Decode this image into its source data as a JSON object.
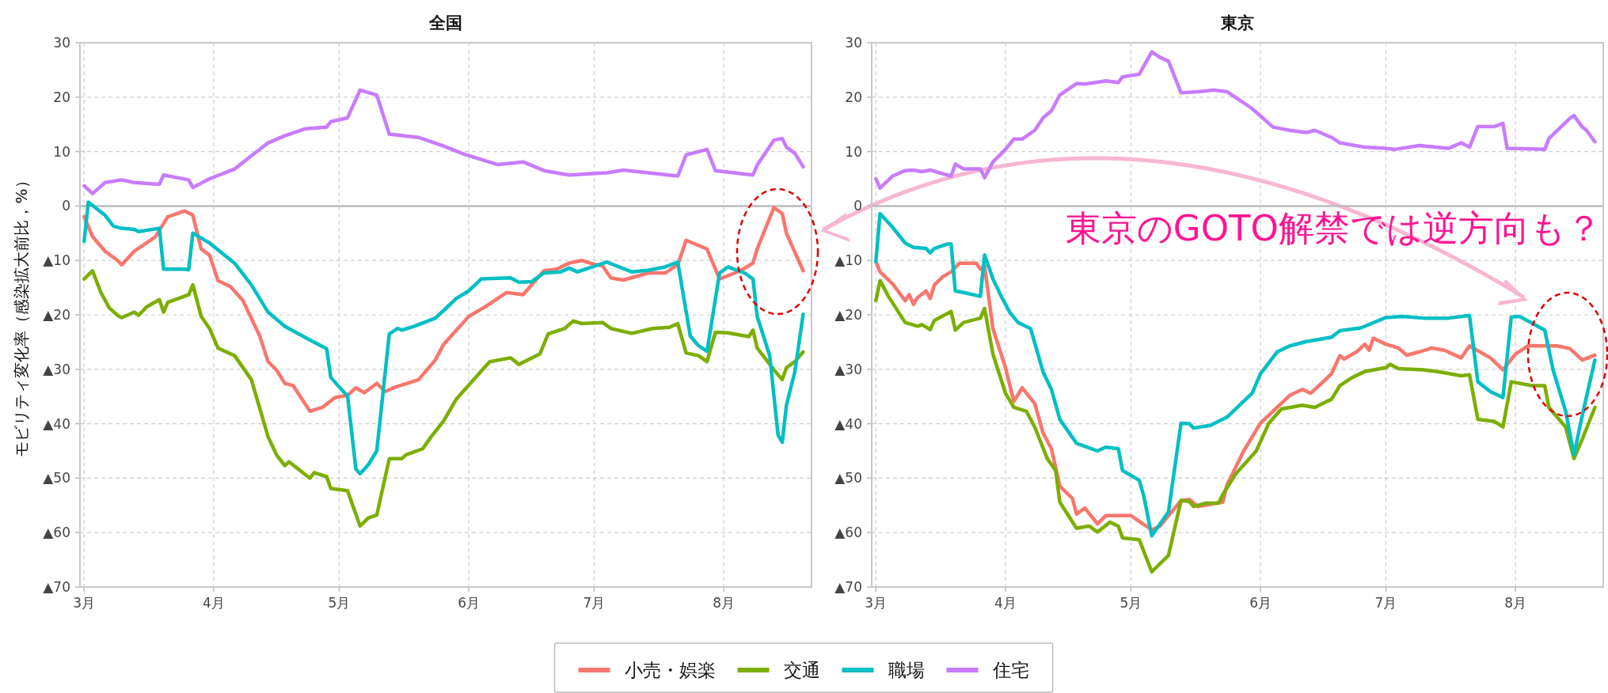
{
  "chart_data": [
    {
      "type": "line",
      "title": "全国",
      "ylabel": "モビリティ変化率（感染拡大前比，%）",
      "grid": true,
      "legend": "bottom",
      "xlim": [
        "--02-28",
        "--08-22"
      ],
      "ylim": [
        -70,
        30
      ],
      "xticks": [
        {
          "value": "--03-01",
          "label": "3月"
        },
        {
          "value": "--04-01",
          "label": "4月"
        },
        {
          "value": "--05-01",
          "label": "5月"
        },
        {
          "value": "--06-01",
          "label": "6月"
        },
        {
          "value": "--07-01",
          "label": "7月"
        },
        {
          "value": "--08-01",
          "label": "8月"
        }
      ],
      "yticks": [
        30,
        20,
        10,
        0,
        {
          "value": -10,
          "label": "▲10"
        },
        {
          "value": -20,
          "label": "▲20"
        },
        {
          "value": -30,
          "label": "▲30"
        },
        {
          "value": -40,
          "label": "▲40"
        },
        {
          "value": -50,
          "label": "▲50"
        },
        {
          "value": -60,
          "label": "▲60"
        },
        {
          "value": -70,
          "label": "▲70"
        }
      ],
      "ref_lines": [
        {
          "axis": "y",
          "value": 0,
          "color": "#bbbbbb"
        }
      ],
      "series": [
        {
          "name": "小売・娯楽",
          "color": "#f8766d",
          "x": [
            "--03-01",
            "--03-03",
            "--03-06",
            "--03-09",
            "--03-10",
            "--03-13",
            "--03-18",
            "--03-21",
            "--03-25",
            "--03-27",
            "--03-29",
            "--03-31",
            "--04-02",
            "--04-05",
            "--04-08",
            "--04-12",
            "--04-14",
            "--04-16",
            "--04-18",
            "--04-20",
            "--04-24",
            "--04-27",
            "--04-30",
            "--05-03",
            "--05-05",
            "--05-07",
            "--05-10",
            "--05-12",
            "--05-14",
            "--05-20",
            "--05-24",
            "--05-26",
            "--06-01",
            "--06-05",
            "--06-10",
            "--06-14",
            "--06-19",
            "--06-22",
            "--06-25",
            "--06-28",
            "--06-30",
            "--07-03",
            "--07-05",
            "--07-08",
            "--07-14",
            "--07-18",
            "--07-21",
            "--07-23",
            "--07-28",
            "--07-31",
            "--08-05",
            "--08-08",
            "--08-09",
            "--08-13",
            "--08-15",
            "--08-16",
            "--08-20"
          ],
          "values": [
            -2.0,
            -5.6,
            -8.3,
            -10.0,
            -10.8,
            -8.3,
            -5.7,
            -2.0,
            -0.9,
            -1.7,
            -7.9,
            -9.0,
            -13.7,
            -14.8,
            -17.4,
            -23.9,
            -28.6,
            -30.1,
            -32.6,
            -33.0,
            -37.7,
            -37.0,
            -35.2,
            -34.8,
            -33.4,
            -34.3,
            -32.6,
            -34.1,
            -33.4,
            -31.9,
            -28.3,
            -25.4,
            -20.3,
            -18.5,
            -15.9,
            -16.3,
            -11.9,
            -11.6,
            -10.5,
            -10.0,
            -10.5,
            -11.0,
            -13.2,
            -13.6,
            -12.3,
            -12.3,
            -10.8,
            -6.3,
            -7.9,
            -13.4,
            -11.9,
            -10.5,
            -7.9,
            -0.3,
            -1.4,
            -5.0,
            -11.9
          ]
        },
        {
          "name": "交通",
          "color": "#7cae00",
          "x": [
            "--03-01",
            "--03-03",
            "--03-05",
            "--03-07",
            "--03-09",
            "--03-10",
            "--03-13",
            "--03-14",
            "--03-16",
            "--03-19",
            "--03-20",
            "--03-21",
            "--03-26",
            "--03-27",
            "--03-29",
            "--03-31",
            "--04-02",
            "--04-06",
            "--04-10",
            "--04-14",
            "--04-16",
            "--04-18",
            "--04-19",
            "--04-24",
            "--04-25",
            "--04-28",
            "--04-29",
            "--05-03",
            "--05-06",
            "--05-08",
            "--05-10",
            "--05-13",
            "--05-16",
            "--05-17",
            "--05-21",
            "--05-23",
            "--05-26",
            "--05-29",
            "--06-03",
            "--06-06",
            "--06-11",
            "--06-13",
            "--06-18",
            "--06-20",
            "--06-24",
            "--06-26",
            "--06-28",
            "--07-03",
            "--07-05",
            "--07-10",
            "--07-15",
            "--07-19",
            "--07-21",
            "--07-23",
            "--07-26",
            "--07-28",
            "--07-30",
            "--08-02",
            "--08-07",
            "--08-08",
            "--08-09",
            "--08-13",
            "--08-15",
            "--08-16",
            "--08-18",
            "--08-20"
          ],
          "values": [
            -13.4,
            -11.9,
            -15.9,
            -18.7,
            -20.1,
            -20.5,
            -19.5,
            -20.1,
            -18.5,
            -17.2,
            -19.5,
            -17.7,
            -16.3,
            -14.5,
            -20.3,
            -22.5,
            -26.1,
            -27.5,
            -31.9,
            -42.4,
            -45.7,
            -47.7,
            -47.0,
            -50.0,
            -49.0,
            -49.7,
            -51.9,
            -52.3,
            -58.8,
            -57.3,
            -56.8,
            -46.4,
            -46.4,
            -45.7,
            -44.6,
            -42.4,
            -39.5,
            -35.5,
            -31.2,
            -28.6,
            -27.9,
            -29.1,
            -27.2,
            -23.5,
            -22.5,
            -21.1,
            -21.6,
            -21.4,
            -22.5,
            -23.4,
            -22.5,
            -22.3,
            -21.6,
            -27.0,
            -27.5,
            -28.6,
            -23.2,
            -23.3,
            -24.0,
            -22.8,
            -26.1,
            -30.1,
            -31.9,
            -29.7,
            -28.6,
            -26.8
          ]
        },
        {
          "name": "職場",
          "color": "#00bfc4",
          "x": [
            "--03-01",
            "--03-02",
            "--03-03",
            "--03-06",
            "--03-08",
            "--03-10",
            "--03-13",
            "--03-14",
            "--03-19",
            "--03-20",
            "--03-25",
            "--03-26",
            "--03-27",
            "--03-31",
            "--04-06",
            "--04-10",
            "--04-14",
            "--04-18",
            "--04-24",
            "--04-28",
            "--04-29",
            "--05-02",
            "--05-03",
            "--05-05",
            "--05-06",
            "--05-08",
            "--05-10",
            "--05-13",
            "--05-15",
            "--05-16",
            "--05-19",
            "--05-24",
            "--05-26",
            "--05-29",
            "--06-01",
            "--06-04",
            "--06-11",
            "--06-13",
            "--06-16",
            "--06-19",
            "--06-23",
            "--06-25",
            "--06-27",
            "--07-04",
            "--07-10",
            "--07-14",
            "--07-18",
            "--07-21",
            "--07-24",
            "--07-26",
            "--07-28",
            "--07-31",
            "--08-02",
            "--08-06",
            "--08-08",
            "--08-09",
            "--08-12",
            "--08-14",
            "--08-15",
            "--08-16",
            "--08-18",
            "--08-20"
          ],
          "values": [
            -6.5,
            0.7,
            0.1,
            -1.7,
            -3.7,
            -4.1,
            -4.3,
            -4.7,
            -4.1,
            -11.6,
            -11.6,
            -11.7,
            -5.0,
            -6.8,
            -10.5,
            -14.5,
            -19.5,
            -22.1,
            -24.6,
            -26.2,
            -31.5,
            -34.1,
            -34.8,
            -48.3,
            -49.2,
            -47.5,
            -45.0,
            -23.5,
            -22.5,
            -22.8,
            -22.1,
            -20.6,
            -19.2,
            -17.0,
            -15.6,
            -13.4,
            -13.2,
            -14.0,
            -13.9,
            -12.3,
            -12.1,
            -11.4,
            -12.1,
            -10.3,
            -12.1,
            -11.8,
            -11.2,
            -10.3,
            -23.9,
            -25.7,
            -26.7,
            -12.3,
            -11.2,
            -12.3,
            -13.4,
            -20.3,
            -27.5,
            -42.1,
            -43.4,
            -36.6,
            -30.5,
            -19.9
          ]
        },
        {
          "name": "住宅",
          "color": "#c77cff",
          "x": [
            "--03-01",
            "--03-03",
            "--03-06",
            "--03-10",
            "--03-13",
            "--03-19",
            "--03-20",
            "--03-26",
            "--03-27",
            "--03-31",
            "--04-06",
            "--04-10",
            "--04-14",
            "--04-18",
            "--04-23",
            "--04-28",
            "--04-29",
            "--05-03",
            "--05-06",
            "--05-10",
            "--05-13",
            "--05-20",
            "--05-26",
            "--05-31",
            "--06-08",
            "--06-14",
            "--06-19",
            "--06-25",
            "--07-04",
            "--07-08",
            "--07-21",
            "--07-23",
            "--07-28",
            "--07-30",
            "--08-08",
            "--08-09",
            "--08-13",
            "--08-15",
            "--08-16",
            "--08-18",
            "--08-20"
          ],
          "values": [
            3.7,
            2.3,
            4.3,
            4.8,
            4.3,
            4.0,
            5.7,
            4.8,
            3.4,
            5.0,
            6.8,
            9.2,
            11.6,
            12.9,
            14.2,
            14.5,
            15.5,
            16.2,
            21.3,
            20.4,
            13.2,
            12.6,
            11.0,
            9.5,
            7.6,
            8.1,
            6.5,
            5.7,
            6.1,
            6.6,
            5.5,
            9.4,
            10.4,
            6.5,
            5.7,
            7.5,
            12.1,
            12.4,
            10.8,
            9.7,
            7.2
          ]
        }
      ]
    },
    {
      "type": "line",
      "title": "東京",
      "grid": true,
      "legend": "bottom",
      "xlim": [
        "--02-28",
        "--08-22"
      ],
      "ylim": [
        -70,
        30
      ],
      "xticks": [
        {
          "value": "--03-01",
          "label": "3月"
        },
        {
          "value": "--04-01",
          "label": "4月"
        },
        {
          "value": "--05-01",
          "label": "5月"
        },
        {
          "value": "--06-01",
          "label": "6月"
        },
        {
          "value": "--07-01",
          "label": "7月"
        },
        {
          "value": "--08-01",
          "label": "8月"
        }
      ],
      "yticks": [
        30,
        20,
        10,
        0,
        {
          "value": -10,
          "label": "▲10"
        },
        {
          "value": -20,
          "label": "▲20"
        },
        {
          "value": -30,
          "label": "▲30"
        },
        {
          "value": -40,
          "label": "▲40"
        },
        {
          "value": -50,
          "label": "▲50"
        },
        {
          "value": -60,
          "label": "▲60"
        },
        {
          "value": -70,
          "label": "▲70"
        }
      ],
      "ref_lines": [
        {
          "axis": "y",
          "value": 0,
          "color": "#bbbbbb"
        }
      ],
      "annotations": [
        "東京のGOTO解禁では逆方向も？"
      ],
      "series": [
        {
          "name": "小売・娯楽",
          "color": "#f8766d",
          "x": [
            "--03-01",
            "--03-02",
            "--03-05",
            "--03-08",
            "--03-09",
            "--03-10",
            "--03-11",
            "--03-13",
            "--03-14",
            "--03-15",
            "--03-17",
            "--03-19",
            "--03-21",
            "--03-25",
            "--03-26",
            "--03-27",
            "--03-29",
            "--04-01",
            "--04-03",
            "--04-05",
            "--04-08",
            "--04-10",
            "--04-12",
            "--04-14",
            "--04-17",
            "--04-18",
            "--04-20",
            "--04-23",
            "--04-25",
            "--05-01",
            "--05-06",
            "--05-08",
            "--05-13",
            "--05-15",
            "--05-17",
            "--05-23",
            "--05-24",
            "--05-28",
            "--06-01",
            "--06-04",
            "--06-08",
            "--06-11",
            "--06-13",
            "--06-16",
            "--06-18",
            "--06-20",
            "--06-21",
            "--06-24",
            "--06-26",
            "--06-27",
            "--06-28",
            "--07-01",
            "--07-04",
            "--07-06",
            "--07-09",
            "--07-12",
            "--07-15",
            "--07-19",
            "--07-21",
            "--07-26",
            "--07-29",
            "--08-01",
            "--08-04",
            "--08-11",
            "--08-14",
            "--08-17",
            "--08-20"
          ],
          "values": [
            -10.2,
            -12.1,
            -14.3,
            -17.4,
            -16.3,
            -18.1,
            -16.8,
            -15.6,
            -17.0,
            -14.5,
            -13.0,
            -12.1,
            -10.5,
            -10.5,
            -11.6,
            -11.0,
            -22.5,
            -29.7,
            -35.9,
            -33.4,
            -36.3,
            -41.7,
            -44.6,
            -51.5,
            -53.7,
            -56.6,
            -55.5,
            -58.4,
            -56.9,
            -56.9,
            -59.5,
            -58.8,
            -54.1,
            -53.9,
            -55.2,
            -54.4,
            -51.2,
            -45.0,
            -39.9,
            -37.7,
            -34.8,
            -33.7,
            -34.4,
            -32.3,
            -30.8,
            -27.5,
            -28.1,
            -26.8,
            -25.4,
            -26.5,
            -24.3,
            -25.4,
            -26.1,
            -27.4,
            -26.8,
            -26.1,
            -26.5,
            -27.9,
            -25.7,
            -27.9,
            -30.1,
            -27.2,
            -25.7,
            -25.7,
            -26.2,
            -28.3,
            -27.4
          ]
        },
        {
          "name": "交通",
          "color": "#7cae00",
          "x": [
            "--03-01",
            "--03-02",
            "--03-04",
            "--03-08",
            "--03-11",
            "--03-12",
            "--03-14",
            "--03-15",
            "--03-19",
            "--03-20",
            "--03-22",
            "--03-26",
            "--03-27",
            "--03-29",
            "--04-01",
            "--04-03",
            "--04-06",
            "--04-08",
            "--04-11",
            "--04-13",
            "--04-14",
            "--04-18",
            "--04-21",
            "--04-23",
            "--04-26",
            "--04-28",
            "--04-29",
            "--05-03",
            "--05-06",
            "--05-10",
            "--05-13",
            "--05-15",
            "--05-16",
            "--05-19",
            "--05-22",
            "--05-23",
            "--05-26",
            "--05-31",
            "--06-03",
            "--06-06",
            "--06-11",
            "--06-14",
            "--06-18",
            "--06-20",
            "--06-23",
            "--06-26",
            "--07-01",
            "--07-02",
            "--07-04",
            "--07-10",
            "--07-14",
            "--07-19",
            "--07-21",
            "--07-23",
            "--07-27",
            "--07-29",
            "--07-31",
            "--08-05",
            "--08-08",
            "--08-09",
            "--08-13",
            "--08-15",
            "--08-17",
            "--08-20"
          ],
          "values": [
            -17.4,
            -13.7,
            -16.6,
            -21.4,
            -22.1,
            -21.8,
            -22.7,
            -21.0,
            -19.4,
            -22.8,
            -21.4,
            -20.6,
            -18.8,
            -27.2,
            -34.4,
            -37.0,
            -37.7,
            -40.6,
            -46.4,
            -48.6,
            -54.4,
            -59.2,
            -58.8,
            -59.9,
            -58.1,
            -58.8,
            -61.0,
            -61.3,
            -67.2,
            -64.2,
            -54.1,
            -54.3,
            -55.2,
            -54.6,
            -54.6,
            -53.0,
            -49.3,
            -45.0,
            -39.9,
            -37.3,
            -36.6,
            -37.0,
            -35.5,
            -33.0,
            -31.5,
            -30.4,
            -29.7,
            -29.1,
            -29.9,
            -30.1,
            -30.5,
            -31.2,
            -31.0,
            -39.2,
            -39.6,
            -40.6,
            -32.3,
            -33.0,
            -33.0,
            -37.0,
            -40.6,
            -46.4,
            -42.8,
            -37.0
          ]
        },
        {
          "name": "職場",
          "color": "#00bfc4",
          "x": [
            "--03-01",
            "--03-02",
            "--03-05",
            "--03-08",
            "--03-10",
            "--03-13",
            "--03-14",
            "--03-15",
            "--03-18",
            "--03-19",
            "--03-20",
            "--03-22",
            "--03-26",
            "--03-27",
            "--03-29",
            "--03-31",
            "--04-02",
            "--04-04",
            "--04-07",
            "--04-10",
            "--04-12",
            "--04-14",
            "--04-18",
            "--04-23",
            "--04-25",
            "--04-28",
            "--04-29",
            "--05-03",
            "--05-04",
            "--05-06",
            "--05-10",
            "--05-13",
            "--05-15",
            "--05-16",
            "--05-20",
            "--05-24",
            "--05-30",
            "--06-01",
            "--06-05",
            "--06-08",
            "--06-12",
            "--06-18",
            "--06-20",
            "--06-25",
            "--07-01",
            "--07-05",
            "--07-10",
            "--07-16",
            "--07-21",
            "--07-23",
            "--07-26",
            "--07-29",
            "--07-31",
            "--08-02",
            "--08-08",
            "--08-10",
            "--08-13",
            "--08-15",
            "--08-17",
            "--08-20"
          ],
          "values": [
            -10.2,
            -1.4,
            -3.9,
            -6.8,
            -7.6,
            -7.8,
            -8.6,
            -7.8,
            -7.0,
            -7.0,
            -15.6,
            -15.9,
            -16.6,
            -9.0,
            -13.4,
            -16.6,
            -19.5,
            -21.4,
            -22.5,
            -30.5,
            -33.7,
            -39.2,
            -43.6,
            -45.0,
            -44.3,
            -44.6,
            -48.6,
            -50.4,
            -53.0,
            -60.6,
            -56.2,
            -39.9,
            -40.0,
            -40.8,
            -40.3,
            -38.8,
            -34.4,
            -30.8,
            -26.8,
            -25.7,
            -24.9,
            -24.1,
            -22.9,
            -22.4,
            -20.5,
            -20.3,
            -20.6,
            -20.6,
            -20.1,
            -32.3,
            -34.1,
            -35.2,
            -20.4,
            -20.3,
            -22.8,
            -30.1,
            -37.7,
            -45.7,
            -38.4,
            -28.3
          ]
        },
        {
          "name": "住宅",
          "color": "#c77cff",
          "x": [
            "--03-01",
            "--03-02",
            "--03-05",
            "--03-08",
            "--03-10",
            "--03-12",
            "--03-14",
            "--03-19",
            "--03-20",
            "--03-22",
            "--03-26",
            "--03-27",
            "--03-29",
            "--04-01",
            "--04-03",
            "--04-05",
            "--04-08",
            "--04-10",
            "--04-12",
            "--04-14",
            "--04-18",
            "--04-20",
            "--04-25",
            "--04-28",
            "--04-29",
            "--05-03",
            "--05-06",
            "--05-08",
            "--05-10",
            "--05-13",
            "--05-17",
            "--05-21",
            "--05-24",
            "--05-30",
            "--06-04",
            "--06-08",
            "--06-12",
            "--06-14",
            "--06-18",
            "--06-20",
            "--06-26",
            "--07-01",
            "--07-03",
            "--07-09",
            "--07-13",
            "--07-16",
            "--07-19",
            "--07-21",
            "--07-23",
            "--07-27",
            "--07-29",
            "--07-30",
            "--08-08",
            "--08-09",
            "--08-11",
            "--08-14",
            "--08-15",
            "--08-17",
            "--08-18",
            "--08-20"
          ],
          "values": [
            5.0,
            3.3,
            5.5,
            6.5,
            6.6,
            6.3,
            6.6,
            5.5,
            7.7,
            6.8,
            6.8,
            5.2,
            8.1,
            10.4,
            12.3,
            12.3,
            13.9,
            16.2,
            17.5,
            20.4,
            22.5,
            22.4,
            23.0,
            22.7,
            23.7,
            24.2,
            28.3,
            27.3,
            26.6,
            20.8,
            21.0,
            21.3,
            21.0,
            17.9,
            14.5,
            13.9,
            13.5,
            13.9,
            12.6,
            11.6,
            10.8,
            10.6,
            10.4,
            11.1,
            10.8,
            10.6,
            11.6,
            10.8,
            14.6,
            14.6,
            15.2,
            10.6,
            10.4,
            12.4,
            13.9,
            16.1,
            16.6,
            14.5,
            13.9,
            11.8
          ]
        }
      ]
    }
  ]
}
